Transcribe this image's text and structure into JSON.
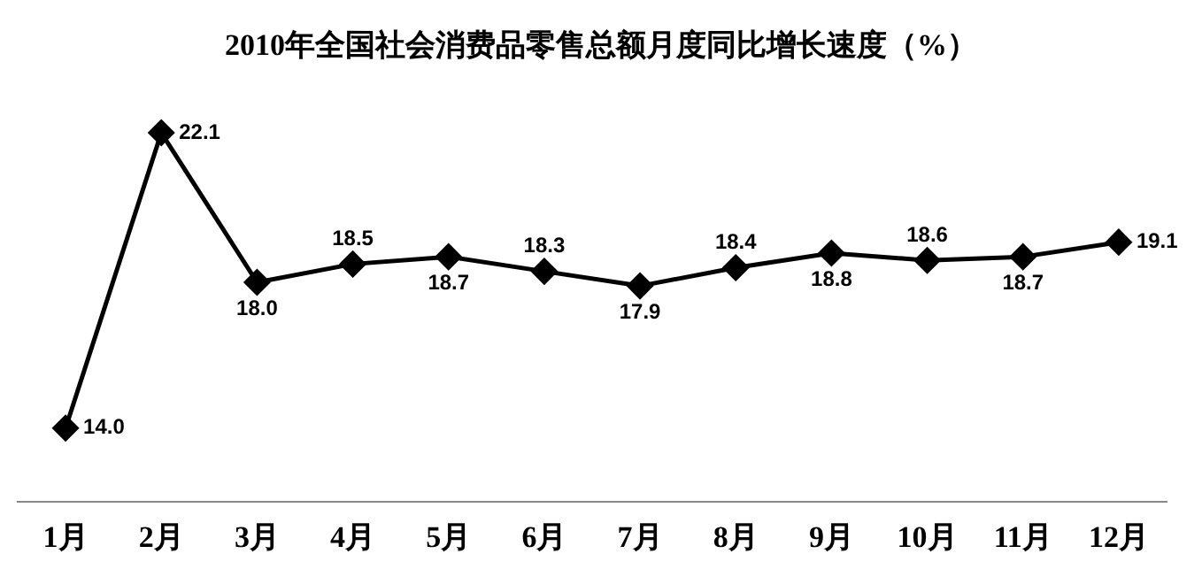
{
  "chart_data": {
    "type": "line",
    "title": "2010年全国社会消费品零售总额月度同比增长速度（%）",
    "categories": [
      "1月",
      "2月",
      "3月",
      "4月",
      "5月",
      "6月",
      "7月",
      "8月",
      "9月",
      "10月",
      "11月",
      "12月"
    ],
    "series": [
      {
        "color": "#000000",
        "values": [
          14.0,
          22.1,
          18.0,
          18.5,
          18.7,
          18.3,
          17.9,
          18.4,
          18.8,
          18.6,
          18.7,
          19.1
        ],
        "value_labels": [
          "14.0",
          "22.1",
          "18.0",
          "18.5",
          "18.7",
          "18.3",
          "17.9",
          "18.4",
          "18.8",
          "18.6",
          "18.7",
          "19.1"
        ]
      }
    ],
    "marker": "diamond",
    "line_style": "solid",
    "grid": false,
    "legend": false,
    "tick_labels": "x"
  }
}
